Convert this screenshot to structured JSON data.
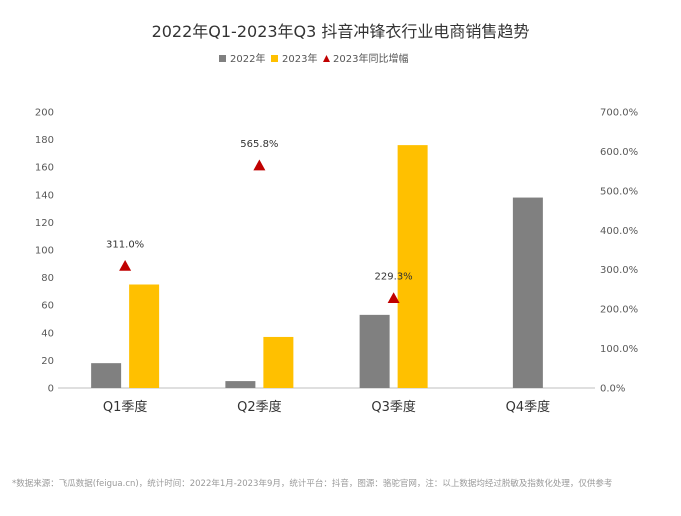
{
  "chart_data": {
    "type": "bar",
    "title": "2022年Q1-2023年Q3 抖音冲锋衣行业电商销售趋势",
    "categories": [
      "Q1季度",
      "Q2季度",
      "Q3季度",
      "Q4季度"
    ],
    "series": [
      {
        "name": "2022年",
        "kind": "bar",
        "axis": "left",
        "color": "#808080",
        "values": [
          18,
          5,
          53,
          138
        ]
      },
      {
        "name": "2023年",
        "kind": "bar",
        "axis": "left",
        "color": "#FFC000",
        "values": [
          75,
          37,
          176,
          null
        ]
      },
      {
        "name": "2023年同比增幅",
        "kind": "marker",
        "axis": "right",
        "color": "#C00000",
        "values": [
          311.0,
          565.8,
          229.3,
          null
        ],
        "labels": [
          "311.0%",
          "565.8%",
          "229.3%",
          null
        ]
      }
    ],
    "y_left": {
      "min": 0,
      "max": 200,
      "ticks": [
        "0",
        "20",
        "40",
        "60",
        "80",
        "100",
        "120",
        "140",
        "160",
        "180",
        "200"
      ]
    },
    "y_right": {
      "min": 0,
      "max": 700,
      "ticks": [
        "0.0%",
        "100.0%",
        "200.0%",
        "300.0%",
        "400.0%",
        "500.0%",
        "600.0%",
        "700.0%"
      ]
    },
    "grid": false,
    "legend_placement": "top-center"
  },
  "footer": "*数据来源：飞瓜数据(feigua.cn)，统计时间：2022年1月-2023年9月，统计平台：抖音，图源：骆驼官网，注：以上数据均经过脱敏及指数化处理，仅供参考"
}
